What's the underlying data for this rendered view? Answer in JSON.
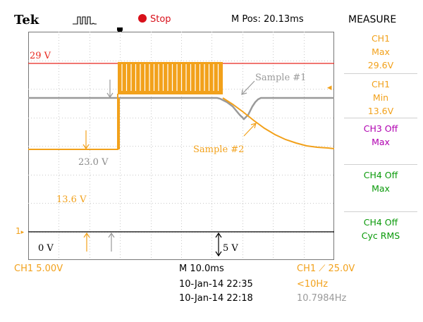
{
  "header": {
    "brand": "Tek",
    "trigger_state": "Stop",
    "mpos": "M Pos: 20.13ms",
    "menu_title": "MEASURE"
  },
  "measure_menu": [
    {
      "lines": [
        "CH1",
        "Max",
        "29.6V"
      ],
      "color": "#f2a11b"
    },
    {
      "lines": [
        "CH1",
        "Min",
        "13.6V"
      ],
      "color": "#f2a11b"
    },
    {
      "lines": [
        "CH3 Off",
        "Max"
      ],
      "color": "#b000b0"
    },
    {
      "lines": [
        "CH4 Off",
        "Max"
      ],
      "color": "#0a9a0a"
    },
    {
      "lines": [
        "CH4 Off",
        "Cyc RMS"
      ],
      "color": "#0a9a0a"
    }
  ],
  "annotations": {
    "level_29v": "29 V",
    "sample1": "Sample #1",
    "sample2": "Sample #2",
    "v23": "23.0 V",
    "v136": "13.6 V",
    "zero_v": "0 V",
    "five_v": "5 V",
    "ch1_marker": "1"
  },
  "footer": {
    "ch1_scale": "CH1  5.00V",
    "timebase": "M 10.0ms",
    "trigger": "CH1  ⟋  25.0V",
    "date1": "10-Jan-14 22:35",
    "date2": "10-Jan-14 22:18",
    "freq_flag": "<10Hz",
    "freq_value": "10.7984Hz"
  },
  "colors": {
    "ch1": "#f2a11b",
    "ref_gray": "#9a9a9a",
    "level_red": "#e8251c",
    "stop_red": "#d8101a",
    "ch3": "#b000b0",
    "ch4": "#0a9a0a"
  }
}
